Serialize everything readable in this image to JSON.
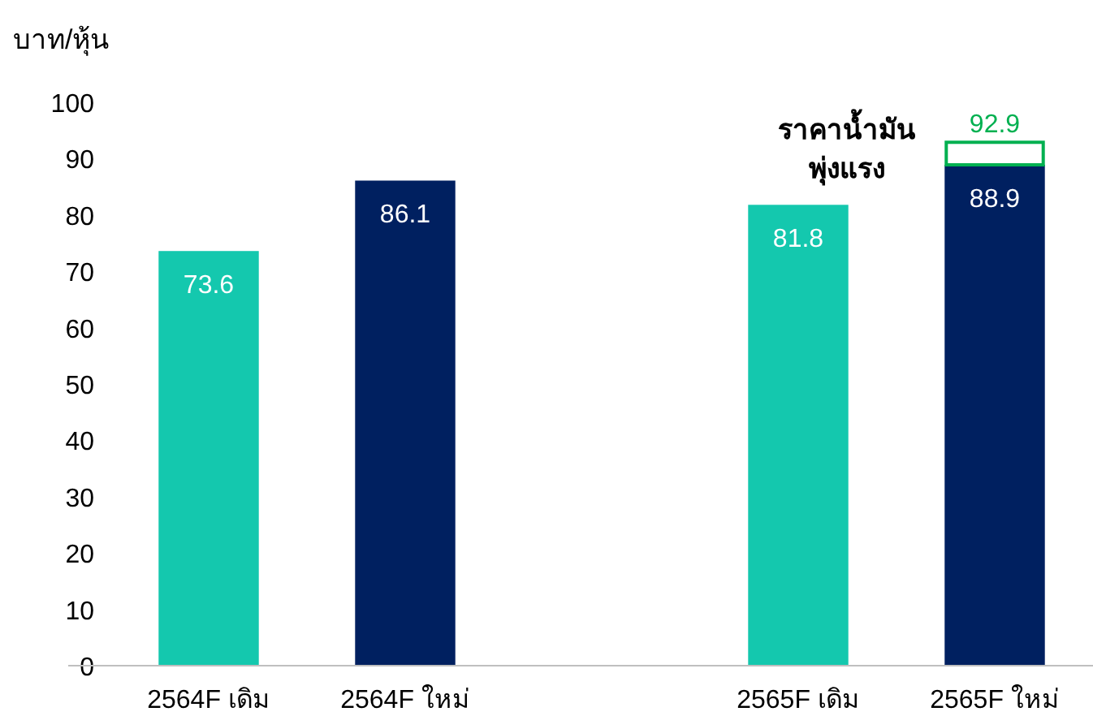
{
  "chart_data": {
    "type": "bar",
    "ylabel": "บาท/หุ้น",
    "categories": [
      "2564F เดิม",
      "2564F ใหม่",
      null,
      "2565F เดิม",
      "2565F ใหม่"
    ],
    "stacked": true,
    "series": [
      {
        "colors": [
          "#14c8ae",
          "#002060",
          null,
          "#14c8ae",
          "#002060"
        ],
        "values": [
          73.6,
          86.1,
          null,
          81.8,
          88.9
        ]
      },
      {
        "color": "#00b050",
        "values": [
          null,
          null,
          null,
          null,
          4.0
        ]
      }
    ],
    "value_labels": [
      "73.6",
      "86.1",
      null,
      "81.8",
      "88.9"
    ],
    "totals": [
      null,
      null,
      null,
      null,
      "92.9"
    ],
    "annotations": [
      {
        "text": "ราคาน้ำมัน\nพุ่งแรง",
        "x": "2565F ใหม่",
        "y": 92.9
      }
    ],
    "ylim": [
      0,
      100
    ],
    "yticks": [
      0,
      10,
      20,
      30,
      40,
      50,
      60,
      70,
      80,
      90,
      100
    ],
    "grid": false
  }
}
